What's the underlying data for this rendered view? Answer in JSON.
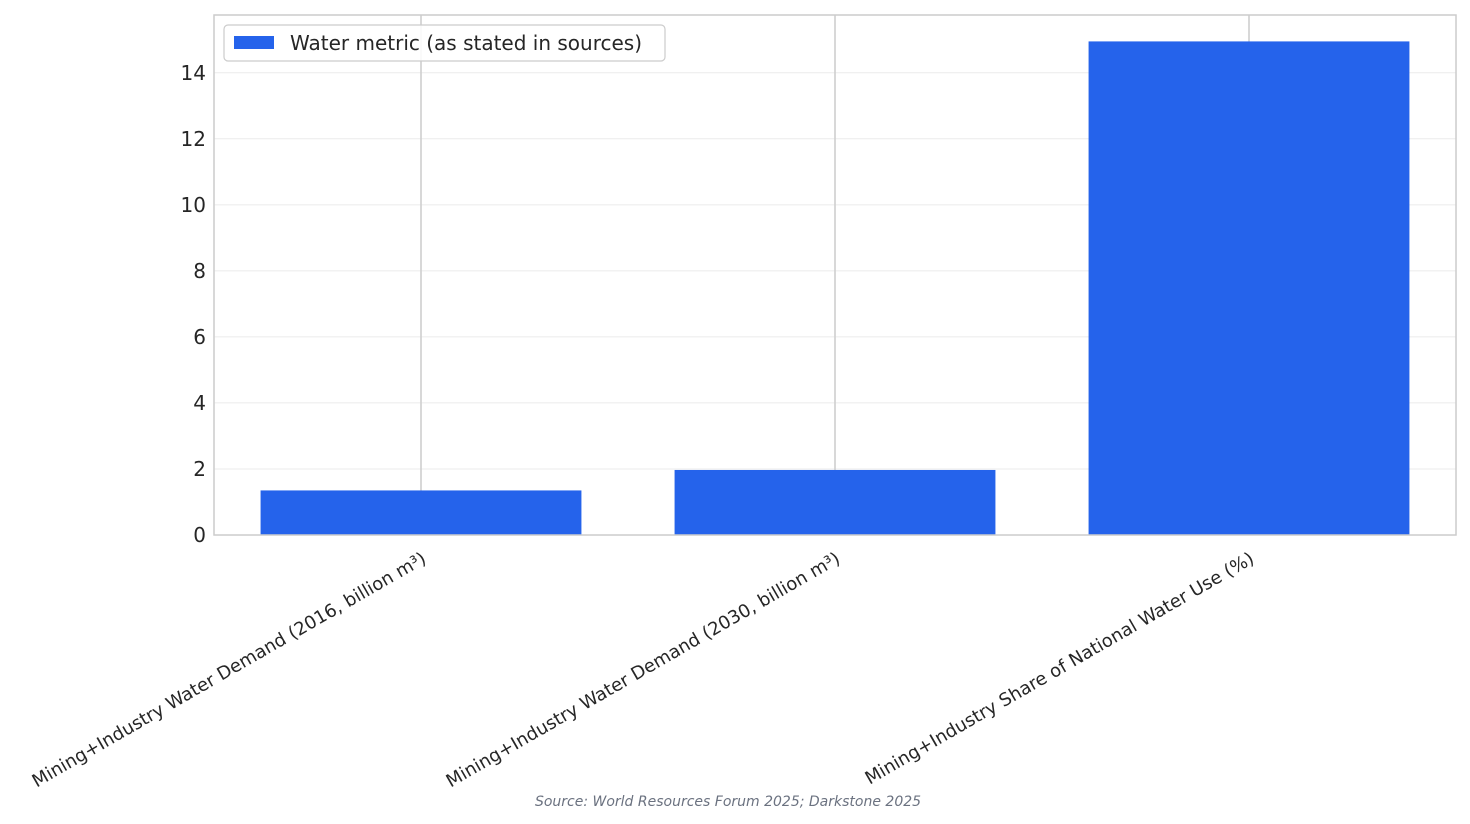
{
  "chart_data": {
    "type": "bar",
    "categories": [
      "Mining+Industry Water Demand (2016, billion m³)",
      "Mining+Industry Water Demand (2030, billion m³)",
      "Mining+Industry Share of National Water Use (%)"
    ],
    "series": [
      {
        "name": "Water metric (as stated in sources)",
        "values": [
          1.35,
          1.97,
          14.95
        ],
        "color": "#2563eb"
      }
    ],
    "title": "",
    "xlabel": "",
    "ylabel": "",
    "ylim": [
      0,
      15.75
    ],
    "yticks": [
      0,
      2,
      4,
      6,
      8,
      10,
      12,
      14
    ],
    "grid": true,
    "legend_position": "upper-left",
    "source": "Source: World Resources Forum 2025; Darkstone 2025"
  }
}
